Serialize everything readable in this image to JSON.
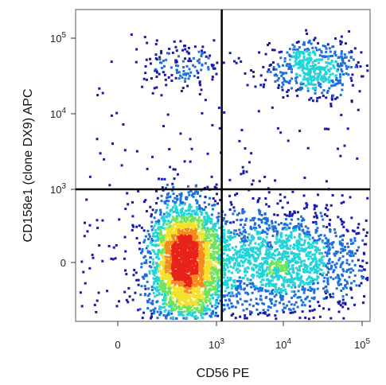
{
  "chart_data": {
    "type": "scatter",
    "title": "",
    "xlabel": "CD56 PE",
    "ylabel": "CD158e1 (clone DX9) APC",
    "x_scale": "biexponential",
    "y_scale": "biexponential",
    "x_ticks": [
      {
        "value": 0,
        "label": "0"
      },
      {
        "value": 1000,
        "label": "10",
        "exp": "3"
      },
      {
        "value": 10000,
        "label": "10",
        "exp": "4"
      },
      {
        "value": 100000,
        "label": "10",
        "exp": "5"
      }
    ],
    "y_ticks": [
      {
        "value": 0,
        "label": "0"
      },
      {
        "value": 1000,
        "label": "10",
        "exp": "3"
      },
      {
        "value": 10000,
        "label": "10",
        "exp": "4"
      },
      {
        "value": 100000,
        "label": "10",
        "exp": "5"
      }
    ],
    "quadrant_gate": {
      "x": 1200,
      "y": 1000
    },
    "grid": false,
    "legend": "none",
    "color_scale": [
      "#1a1aa8",
      "#1c6fe0",
      "#22d3d8",
      "#6fe35a",
      "#f2e22a",
      "#f58a1f",
      "#e8231a"
    ],
    "populations": [
      {
        "description": "CD56- CD158e1- (dense)",
        "x_center": 150,
        "y_center": 0,
        "relative_density": 1.0
      },
      {
        "description": "CD56+ CD158e1-",
        "x_center": 9000,
        "y_center": 0,
        "relative_density": 0.45
      },
      {
        "description": "CD56+ CD158e1+",
        "x_center": 25000,
        "y_center": 40000,
        "relative_density": 0.3
      },
      {
        "description": "CD56- CD158e1+",
        "x_center": 150,
        "y_center": 40000,
        "relative_density": 0.12
      }
    ]
  }
}
